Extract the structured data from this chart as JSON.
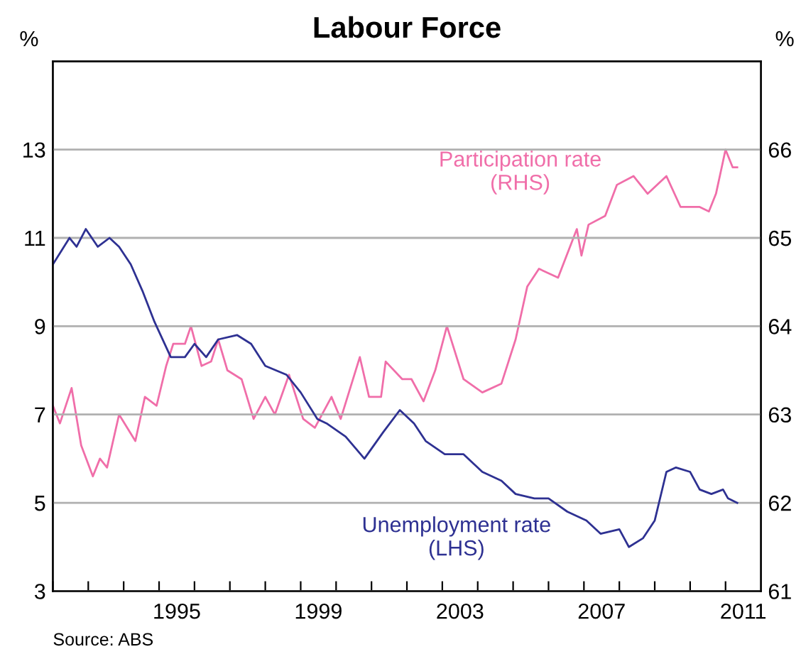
{
  "chart_data": {
    "type": "line",
    "title": "Labour Force",
    "ylabel": "%",
    "y2label": "%",
    "xlim": [
      1992,
      2012
    ],
    "ylim": [
      3,
      15
    ],
    "yticks": [
      3,
      5,
      7,
      9,
      11,
      13
    ],
    "y2lim": [
      61,
      67
    ],
    "y2ticks": [
      61,
      62,
      63,
      64,
      65,
      66
    ],
    "xticks": [
      {
        "value": 1992,
        "label": null
      },
      {
        "value": 1993,
        "label": null
      },
      {
        "value": 1994,
        "label": null
      },
      {
        "value": 1995,
        "label": null
      },
      {
        "value": 1996,
        "label": null
      },
      {
        "value": 1997,
        "label": null
      },
      {
        "value": 1998,
        "label": null
      },
      {
        "value": 1999,
        "label": null
      },
      {
        "value": 2000,
        "label": null
      },
      {
        "value": 2001,
        "label": null
      },
      {
        "value": 2002,
        "label": null
      },
      {
        "value": 2003,
        "label": null
      },
      {
        "value": 2004,
        "label": null
      },
      {
        "value": 2005,
        "label": null
      },
      {
        "value": 2006,
        "label": null
      },
      {
        "value": 2007,
        "label": null
      },
      {
        "value": 2008,
        "label": null
      },
      {
        "value": 2009,
        "label": null
      },
      {
        "value": 2010,
        "label": null
      },
      {
        "value": 2011,
        "label": null
      },
      {
        "value": 1995.5,
        "label": "1995"
      },
      {
        "value": 1999.5,
        "label": "1999"
      },
      {
        "value": 2003.5,
        "label": "2003"
      },
      {
        "value": 2007.5,
        "label": "2007"
      },
      {
        "value": 2011.5,
        "label": "2011"
      }
    ],
    "grid": "y",
    "legend": false,
    "marker": "none",
    "line_style": "solid",
    "annotations": [
      "Source: ABS"
    ],
    "series": [
      {
        "name": "Unemployment rate\n(LHS)",
        "color": "#2e3192",
        "axis": "y",
        "x": [
          1992.0,
          1992.47,
          1992.67,
          1992.93,
          1993.27,
          1993.6,
          1993.87,
          1994.2,
          1994.53,
          1994.87,
          1995.33,
          1995.73,
          1996.0,
          1996.33,
          1996.67,
          1997.2,
          1997.6,
          1998.0,
          1998.6,
          1999.0,
          1999.47,
          1999.73,
          2000.27,
          2000.8,
          2001.33,
          2001.8,
          2002.2,
          2002.53,
          2003.07,
          2003.6,
          2004.13,
          2004.67,
          2005.07,
          2005.6,
          2006.0,
          2006.53,
          2007.07,
          2007.47,
          2008.0,
          2008.27,
          2008.67,
          2009.0,
          2009.33,
          2009.6,
          2010.0,
          2010.27,
          2010.6,
          2010.93,
          2011.07,
          2011.33
        ],
        "values": [
          10.4,
          11.0,
          10.8,
          11.2,
          10.8,
          11.0,
          10.8,
          10.4,
          9.8,
          9.1,
          8.3,
          8.3,
          8.6,
          8.3,
          8.7,
          8.8,
          8.6,
          8.1,
          7.9,
          7.5,
          6.9,
          6.8,
          6.5,
          6.0,
          6.6,
          7.1,
          6.8,
          6.4,
          6.1,
          6.1,
          5.7,
          5.5,
          5.2,
          5.1,
          5.1,
          4.8,
          4.6,
          4.3,
          4.4,
          4.0,
          4.2,
          4.6,
          5.7,
          5.8,
          5.7,
          5.3,
          5.2,
          5.3,
          5.1,
          5.0
        ]
      },
      {
        "name": "Participation rate\n(RHS)",
        "color": "#f06ea9",
        "axis": "y2",
        "x": [
          1992.0,
          1992.2,
          1992.53,
          1992.8,
          1993.13,
          1993.33,
          1993.53,
          1993.87,
          1994.33,
          1994.6,
          1994.93,
          1995.2,
          1995.4,
          1995.73,
          1995.9,
          1996.2,
          1996.47,
          1996.67,
          1996.93,
          1997.33,
          1997.67,
          1998.0,
          1998.27,
          1998.67,
          1999.07,
          1999.4,
          1999.87,
          2000.13,
          2000.67,
          2000.93,
          2001.27,
          2001.4,
          2001.87,
          2002.13,
          2002.47,
          2002.8,
          2003.13,
          2003.6,
          2004.13,
          2004.67,
          2005.07,
          2005.4,
          2005.73,
          2006.27,
          2006.8,
          2006.93,
          2007.13,
          2007.6,
          2007.93,
          2008.4,
          2008.8,
          2009.33,
          2009.73,
          2010.27,
          2010.53,
          2010.73,
          2011.0,
          2011.2,
          2011.33
        ],
        "values": [
          63.1,
          62.9,
          63.3,
          62.65,
          62.3,
          62.5,
          62.4,
          63.0,
          62.7,
          63.2,
          63.1,
          63.55,
          63.8,
          63.8,
          64.0,
          63.55,
          63.6,
          63.85,
          63.5,
          63.4,
          62.95,
          63.2,
          63.0,
          63.45,
          62.95,
          62.85,
          63.2,
          62.95,
          63.65,
          63.2,
          63.2,
          63.6,
          63.4,
          63.4,
          63.15,
          63.5,
          64.0,
          63.4,
          63.25,
          63.35,
          63.85,
          64.45,
          64.65,
          64.55,
          65.1,
          64.8,
          65.15,
          65.25,
          65.6,
          65.7,
          65.5,
          65.7,
          65.35,
          65.35,
          65.3,
          65.5,
          66.0,
          65.8,
          65.8
        ]
      }
    ]
  }
}
